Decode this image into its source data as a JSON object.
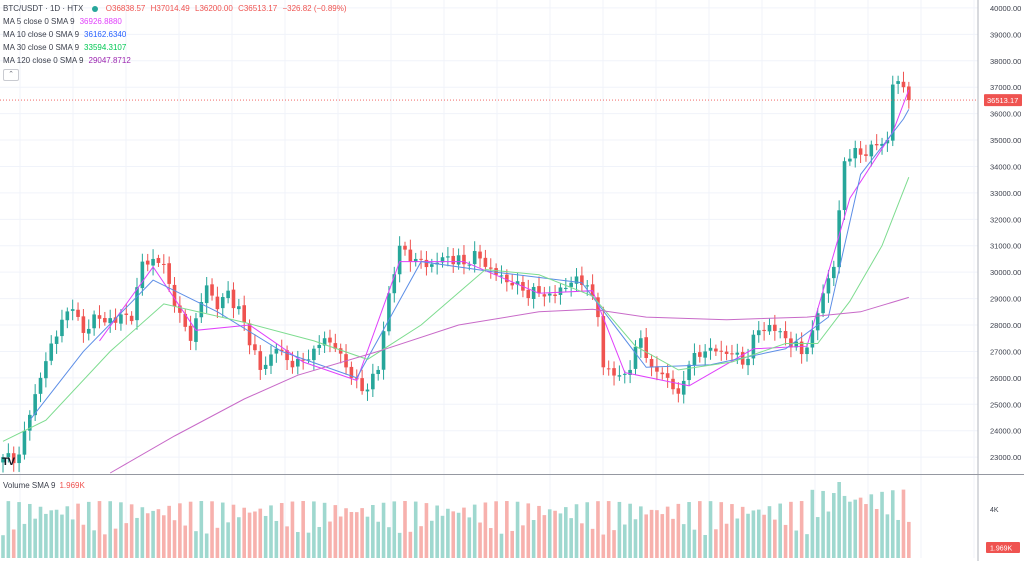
{
  "header": {
    "symbol": "BTC/USDT · 1D · HTX",
    "ohlc": {
      "open": "O36838.57",
      "high": "H37014.49",
      "low": "L36200.00",
      "close": "C36513.17",
      "change": "−326.82 (−0.89%)"
    }
  },
  "indicators": [
    {
      "label": "MA 5 close 0 SMA 9",
      "value": "36926.8880",
      "color": "#e040fb"
    },
    {
      "label": "MA 10 close 0 SMA 9",
      "value": "36162.6340",
      "color": "#2962ff"
    },
    {
      "label": "MA 30 close 0 SMA 9",
      "value": "33594.3107",
      "color": "#00c853"
    },
    {
      "label": "MA 120 close 0 SMA 9",
      "value": "29047.8712",
      "color": "#9c27b0"
    }
  ],
  "volume_legend": {
    "label": "Volume SMA 9",
    "value": "1.969K"
  },
  "price_axis": {
    "ticks": [
      "40000.00",
      "39000.00",
      "38000.00",
      "37000.00",
      "36000.00",
      "35000.00",
      "34000.00",
      "33000.00",
      "32000.00",
      "31000.00",
      "30000.00",
      "29000.00",
      "28000.00",
      "27000.00",
      "26000.00",
      "25000.00",
      "24000.00",
      "23000.00"
    ],
    "last_price_label": "36513.17"
  },
  "volume_axis": {
    "tick": "4K",
    "last_label": "1.969K"
  },
  "logo_text": "TV",
  "colors": {
    "up": "#26a69a",
    "down": "#ef5350",
    "up_vol": "#9fd8cf",
    "down_vol": "#f7b1ad",
    "ma5": "#e040fb",
    "ma10": "#5c8ee6",
    "ma30": "#7ddc8f",
    "ma120": "#c86ac8",
    "grid": "#f0f3fa"
  },
  "chart_data": {
    "type": "candlestick",
    "title": "BTC/USDT · 1D · HTX",
    "ylim": [
      22400,
      40300
    ],
    "grid": true,
    "anchors": [
      [
        0,
        23000
      ],
      [
        3,
        23100
      ],
      [
        5,
        24600
      ],
      [
        7,
        26000
      ],
      [
        9,
        27300
      ],
      [
        11,
        28200
      ],
      [
        13,
        28600
      ],
      [
        15,
        27700
      ],
      [
        17,
        28400
      ],
      [
        19,
        28100
      ],
      [
        22,
        28400
      ],
      [
        24,
        28150
      ],
      [
        26,
        30400
      ],
      [
        28,
        30500
      ],
      [
        30,
        30300
      ],
      [
        32,
        28700
      ],
      [
        35,
        27400
      ],
      [
        38,
        29500
      ],
      [
        40,
        28600
      ],
      [
        42,
        29300
      ],
      [
        45,
        28100
      ],
      [
        48,
        26300
      ],
      [
        51,
        27100
      ],
      [
        54,
        26400
      ],
      [
        57,
        26700
      ],
      [
        60,
        27500
      ],
      [
        62,
        27100
      ],
      [
        65,
        26000
      ],
      [
        67,
        25500
      ],
      [
        70,
        26300
      ],
      [
        72,
        29200
      ],
      [
        74,
        31000
      ],
      [
        77,
        30500
      ],
      [
        80,
        30300
      ],
      [
        83,
        30600
      ],
      [
        86,
        30300
      ],
      [
        88,
        30800
      ],
      [
        90,
        30200
      ],
      [
        92,
        29900
      ],
      [
        95,
        29500
      ],
      [
        97,
        29300
      ],
      [
        100,
        29200
      ],
      [
        103,
        29100
      ],
      [
        106,
        29600
      ],
      [
        109,
        29500
      ],
      [
        111,
        28300
      ],
      [
        112,
        26400
      ],
      [
        115,
        26100
      ],
      [
        117,
        26300
      ],
      [
        119,
        27500
      ],
      [
        121,
        26400
      ],
      [
        124,
        26000
      ],
      [
        126,
        25400
      ],
      [
        128,
        26500
      ],
      [
        131,
        27000
      ],
      [
        133,
        27000
      ],
      [
        136,
        26900
      ],
      [
        138,
        26500
      ],
      [
        141,
        27800
      ],
      [
        143,
        28000
      ],
      [
        146,
        27500
      ],
      [
        149,
        26900
      ],
      [
        151,
        27800
      ],
      [
        153,
        29200
      ],
      [
        155,
        30200
      ],
      [
        157,
        34200
      ],
      [
        159,
        34700
      ],
      [
        161,
        34400
      ],
      [
        163,
        34800
      ],
      [
        165,
        35000
      ],
      [
        166,
        37100
      ],
      [
        168,
        37000
      ],
      [
        169,
        36513
      ]
    ],
    "ma_paths": {
      "ma5": [
        [
          18,
          27400
        ],
        [
          28,
          30200
        ],
        [
          36,
          27800
        ],
        [
          46,
          28000
        ],
        [
          56,
          26600
        ],
        [
          66,
          25900
        ],
        [
          74,
          30400
        ],
        [
          86,
          30400
        ],
        [
          100,
          29200
        ],
        [
          110,
          29300
        ],
        [
          116,
          26200
        ],
        [
          128,
          25700
        ],
        [
          140,
          27100
        ],
        [
          150,
          27200
        ],
        [
          158,
          32800
        ],
        [
          166,
          35300
        ],
        [
          169,
          36900
        ]
      ],
      "ma10": [
        [
          5,
          24400
        ],
        [
          15,
          27000
        ],
        [
          28,
          29700
        ],
        [
          40,
          28500
        ],
        [
          52,
          27000
        ],
        [
          66,
          26000
        ],
        [
          78,
          30400
        ],
        [
          92,
          30000
        ],
        [
          108,
          29600
        ],
        [
          120,
          26400
        ],
        [
          132,
          26500
        ],
        [
          146,
          27100
        ],
        [
          154,
          28300
        ],
        [
          160,
          33700
        ],
        [
          168,
          35800
        ],
        [
          169,
          36160
        ]
      ],
      "ma30": [
        [
          0,
          23600
        ],
        [
          8,
          24400
        ],
        [
          20,
          27000
        ],
        [
          30,
          28800
        ],
        [
          45,
          28100
        ],
        [
          58,
          27400
        ],
        [
          68,
          26700
        ],
        [
          78,
          28000
        ],
        [
          90,
          30100
        ],
        [
          100,
          29900
        ],
        [
          110,
          29100
        ],
        [
          118,
          27200
        ],
        [
          126,
          26300
        ],
        [
          136,
          26600
        ],
        [
          146,
          27300
        ],
        [
          152,
          27300
        ],
        [
          158,
          28900
        ],
        [
          164,
          31000
        ],
        [
          169,
          33594
        ]
      ],
      "ma120": [
        [
          20,
          22400
        ],
        [
          32,
          23800
        ],
        [
          45,
          25200
        ],
        [
          55,
          26100
        ],
        [
          70,
          27000
        ],
        [
          85,
          28000
        ],
        [
          100,
          28500
        ],
        [
          110,
          28600
        ],
        [
          120,
          28300
        ],
        [
          135,
          28200
        ],
        [
          150,
          28300
        ],
        [
          160,
          28500
        ],
        [
          169,
          29047
        ]
      ]
    }
  }
}
